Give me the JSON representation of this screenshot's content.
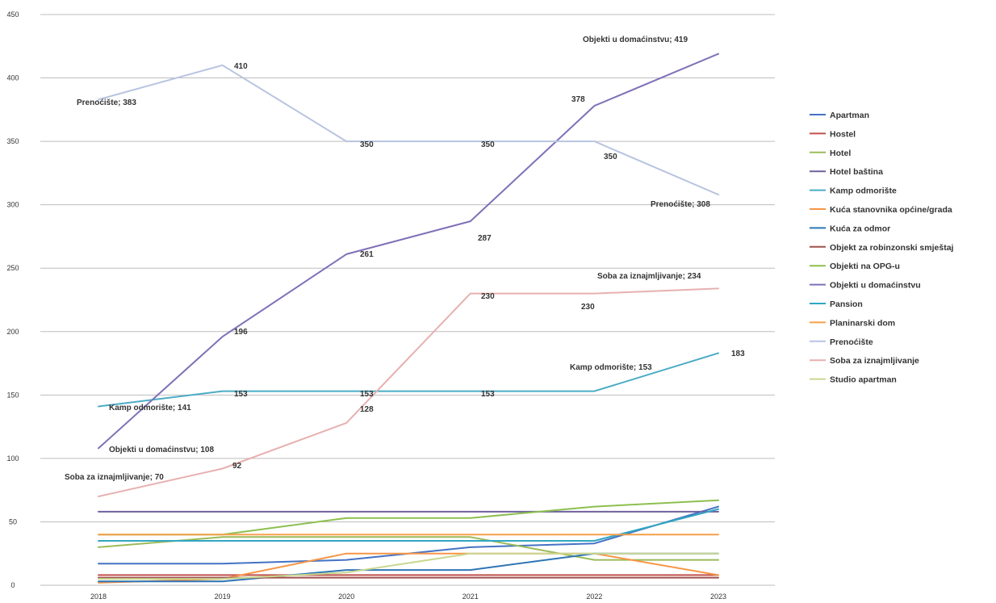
{
  "caption_text": "",
  "chart_data": {
    "type": "line",
    "title": "",
    "xlabel": "",
    "ylabel": "",
    "ylim": [
      0,
      450
    ],
    "yticks": [
      0,
      50,
      100,
      150,
      200,
      250,
      300,
      350,
      400,
      450
    ],
    "x": [
      "2018",
      "2019",
      "2020",
      "2021",
      "2022",
      "2023"
    ],
    "grid": true,
    "legend_position": "right",
    "series": [
      {
        "name": "Apartman",
        "color": "#4472c4",
        "values": [
          17,
          17,
          20,
          30,
          33,
          62
        ]
      },
      {
        "name": "Hostel",
        "color": "#c0504d",
        "values": [
          8,
          8,
          8,
          8,
          8,
          8
        ]
      },
      {
        "name": "Hotel",
        "color": "#9bbb59",
        "values": [
          30,
          38,
          38,
          38,
          20,
          20
        ]
      },
      {
        "name": "Hotel baština",
        "color": "#7060a0",
        "values": [
          58,
          58,
          58,
          58,
          58,
          58
        ]
      },
      {
        "name": "Kamp odmorište",
        "color": "#4bacc6",
        "values": [
          141,
          153,
          153,
          153,
          153,
          183
        ]
      },
      {
        "name": "Kuća stanovnika općine/grada",
        "color": "#f79646",
        "values": [
          2,
          5,
          25,
          25,
          25,
          8
        ]
      },
      {
        "name": "Kuća za odmor",
        "color": "#2e75b6",
        "values": [
          3,
          3,
          12,
          12,
          25,
          25
        ]
      },
      {
        "name": "Objekt za robinzonski smještaj",
        "color": "#a0504d",
        "values": [
          6,
          6,
          6,
          6,
          6,
          6
        ]
      },
      {
        "name": "Objekti na OPG-u",
        "color": "#8dbf4f",
        "values": [
          40,
          40,
          53,
          53,
          62,
          67
        ]
      },
      {
        "name": "Objekti u domaćinstvu",
        "color": "#8070b8",
        "values": [
          108,
          196,
          261,
          287,
          378,
          419
        ]
      },
      {
        "name": "Pansion",
        "color": "#31a6c2",
        "values": [
          35,
          35,
          35,
          35,
          35,
          60
        ]
      },
      {
        "name": "Planinarski dom",
        "color": "#f5a04a",
        "values": [
          40,
          40,
          40,
          40,
          40,
          40
        ]
      },
      {
        "name": "Prenoćište",
        "color": "#b8c4e0",
        "values": [
          383,
          410,
          350,
          350,
          350,
          308
        ]
      },
      {
        "name": "Soba za iznajmljivanje",
        "color": "#e8b0b0",
        "values": [
          70,
          92,
          128,
          230,
          230,
          234
        ]
      },
      {
        "name": "Studio apartman",
        "color": "#c8d890",
        "values": [
          5,
          5,
          10,
          25,
          25,
          25
        ]
      }
    ],
    "annotations": [
      {
        "series": "Objekti u domaćinstvu",
        "x": "2023",
        "text": "Objekti u domaćinstvu; 419"
      },
      {
        "series": "Objekti u domaćinstvu",
        "x": "2022",
        "text": "378"
      },
      {
        "series": "Objekti u domaćinstvu",
        "x": "2021",
        "text": "287"
      },
      {
        "series": "Objekti u domaćinstvu",
        "x": "2020",
        "text": "261"
      },
      {
        "series": "Objekti u domaćinstvu",
        "x": "2019",
        "text": "196"
      },
      {
        "series": "Objekti u domaćinstvu",
        "x": "2018",
        "text": "Objekti u domaćinstvu; 108"
      },
      {
        "series": "Prenoćište",
        "x": "2018",
        "text": "Prenoćište; 383"
      },
      {
        "series": "Prenoćište",
        "x": "2019",
        "text": "410"
      },
      {
        "series": "Prenoćište",
        "x": "2020",
        "text": "350"
      },
      {
        "series": "Prenoćište",
        "x": "2021",
        "text": "350"
      },
      {
        "series": "Prenoćište",
        "x": "2022",
        "text": "350"
      },
      {
        "series": "Prenoćište",
        "x": "2023",
        "text": "Prenoćište; 308"
      },
      {
        "series": "Soba za iznajmljivanje",
        "x": "2023",
        "text": "Soba za iznajmljivanje; 234"
      },
      {
        "series": "Soba za iznajmljivanje",
        "x": "2022",
        "text": "230"
      },
      {
        "series": "Soba za iznajmljivanje",
        "x": "2021",
        "text": "230"
      },
      {
        "series": "Soba za iznajmljivanje",
        "x": "2020",
        "text": "128"
      },
      {
        "series": "Soba za iznajmljivanje",
        "x": "2019",
        "text": "92"
      },
      {
        "series": "Soba za iznajmljivanje",
        "x": "2018",
        "text": "Soba za iznajmljivanje; 70"
      },
      {
        "series": "Kamp odmorište",
        "x": "2018",
        "text": "Kamp odmorište; 141"
      },
      {
        "series": "Kamp odmorište",
        "x": "2019",
        "text": "153"
      },
      {
        "series": "Kamp odmorište",
        "x": "2020",
        "text": "153"
      },
      {
        "series": "Kamp odmorište",
        "x": "2021",
        "text": "153"
      },
      {
        "series": "Kamp odmorište",
        "x": "2022",
        "text": "Kamp odmorište; 153"
      },
      {
        "series": "Kamp odmorište",
        "x": "2023",
        "text": "183"
      }
    ]
  }
}
